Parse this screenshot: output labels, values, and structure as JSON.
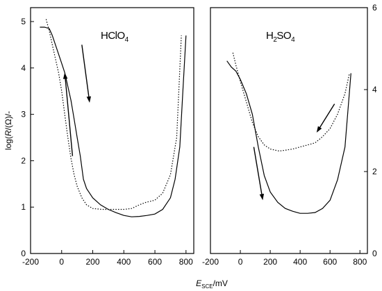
{
  "chart_data": [
    {
      "type": "line",
      "panel": "left",
      "title_main": "HClO",
      "title_sub": "4",
      "xlabel_main": "E",
      "xlabel_sub": "SCE",
      "xlabel_unit": "/mV",
      "ylabel_parts": [
        "log(",
        "R",
        "/(Ω)/-"
      ],
      "xlim": [
        -200,
        850
      ],
      "ylim": [
        0,
        5.3
      ],
      "xticks": [
        -200,
        0,
        200,
        400,
        600,
        800
      ],
      "yticks": [
        0,
        1,
        2,
        3,
        4,
        5
      ],
      "y_axis_side": "left",
      "grid": false,
      "series": [
        {
          "style": "solid",
          "x": [
            -140,
            -110,
            -80,
            -60,
            -40,
            -20,
            0,
            20,
            40,
            60,
            80,
            100,
            120,
            140,
            160,
            200,
            250,
            300,
            350,
            400,
            450,
            500,
            550,
            600,
            650,
            700,
            730,
            760,
            780,
            800
          ],
          "y": [
            4.88,
            4.88,
            4.85,
            4.7,
            4.5,
            4.3,
            4.1,
            3.9,
            3.6,
            3.3,
            2.9,
            2.5,
            2.1,
            1.6,
            1.4,
            1.2,
            1.05,
            0.95,
            0.88,
            0.82,
            0.79,
            0.8,
            0.82,
            0.85,
            0.95,
            1.2,
            1.6,
            2.3,
            3.5,
            4.7
          ]
        },
        {
          "style": "dotted",
          "x": [
            -100,
            -80,
            -60,
            -40,
            -20,
            0,
            20,
            40,
            60,
            80,
            100,
            130,
            160,
            200,
            260,
            300,
            350,
            400,
            450,
            500,
            540,
            600,
            650,
            700,
            740,
            770
          ],
          "y": [
            5.05,
            4.8,
            4.5,
            4.2,
            3.9,
            3.5,
            3.0,
            2.5,
            2.05,
            1.7,
            1.45,
            1.2,
            1.05,
            0.97,
            0.95,
            0.95,
            0.95,
            0.95,
            0.97,
            1.05,
            1.1,
            1.15,
            1.3,
            1.7,
            2.5,
            4.7
          ]
        }
      ],
      "arrows": [
        {
          "from": [
            130,
            4.5
          ],
          "to": [
            180,
            3.25
          ]
        },
        {
          "from": [
            70,
            2.1
          ],
          "to": [
            20,
            3.9
          ]
        }
      ]
    },
    {
      "type": "line",
      "panel": "right",
      "title_main": "H",
      "title_sub1": "2",
      "title_mid": "SO",
      "title_sub2": "4",
      "xlim": [
        -200,
        850
      ],
      "ylim": [
        0,
        6
      ],
      "xticks": [
        -200,
        0,
        200,
        400,
        600,
        800
      ],
      "yticks": [
        0,
        2,
        4,
        6
      ],
      "y_axis_side": "right",
      "grid": false,
      "series": [
        {
          "style": "solid",
          "x": [
            -90,
            -60,
            -30,
            0,
            40,
            80,
            120,
            160,
            200,
            250,
            300,
            350,
            400,
            450,
            500,
            550,
            600,
            650,
            700,
            720,
            740
          ],
          "y": [
            4.7,
            4.55,
            4.45,
            4.25,
            3.9,
            3.4,
            2.6,
            1.9,
            1.5,
            1.25,
            1.1,
            1.03,
            0.98,
            0.98,
            1.0,
            1.1,
            1.3,
            1.8,
            2.6,
            3.5,
            4.4
          ]
        },
        {
          "style": "dotted",
          "x": [
            -50,
            -30,
            0,
            40,
            80,
            120,
            160,
            200,
            260,
            300,
            350,
            400,
            450,
            500,
            550,
            600,
            650,
            700,
            730
          ],
          "y": [
            4.9,
            4.6,
            4.2,
            3.7,
            3.2,
            2.85,
            2.65,
            2.55,
            2.5,
            2.52,
            2.55,
            2.6,
            2.65,
            2.7,
            2.85,
            3.05,
            3.4,
            3.9,
            4.4
          ]
        }
      ],
      "arrows": [
        {
          "from": [
            630,
            3.65
          ],
          "to": [
            510,
            2.95
          ]
        },
        {
          "from": [
            90,
            2.6
          ],
          "to": [
            150,
            1.3
          ]
        }
      ]
    }
  ]
}
